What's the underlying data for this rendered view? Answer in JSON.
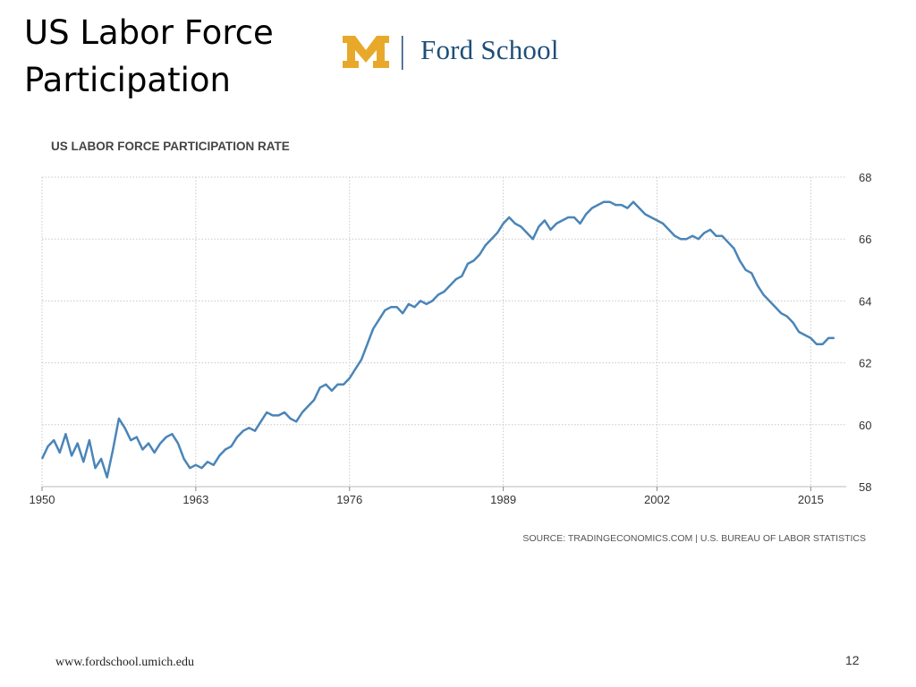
{
  "slide": {
    "title_line1": "US Labor Force",
    "title_line2": "Participation",
    "logo_text": "Ford School",
    "footer_url": "www.fordschool.umich.edu",
    "page_number": "12"
  },
  "colors": {
    "line": "#4a85b8",
    "logo_maize": "#e8a92b",
    "logo_blue": "#1f4e79",
    "grid": "#c8c8c8"
  },
  "chart_data": {
    "type": "line",
    "title": "US LABOR FORCE PARTICIPATION RATE",
    "source": "SOURCE: TRADINGECONOMICS.COM | U.S. BUREAU OF LABOR STATISTICS",
    "xlabel": "",
    "ylabel": "",
    "xlim": [
      1950,
      2018
    ],
    "ylim": [
      58,
      68
    ],
    "x_ticks": [
      1950,
      1963,
      1976,
      1989,
      2002,
      2015
    ],
    "y_ticks": [
      58,
      60,
      62,
      64,
      66,
      68
    ],
    "y_axis_side": "right",
    "grid": true,
    "series": [
      {
        "x": [
          1950,
          1950.5,
          1951,
          1951.5,
          1952,
          1952.5,
          1953,
          1953.5,
          1954,
          1954.5,
          1955,
          1955.5,
          1956,
          1956.5,
          1957,
          1957.5,
          1958,
          1958.5,
          1959,
          1959.5,
          1960,
          1960.5,
          1961,
          1961.5,
          1962,
          1962.5,
          1963,
          1963.5,
          1964,
          1964.5,
          1965,
          1965.5,
          1966,
          1966.5,
          1967,
          1967.5,
          1968,
          1968.5,
          1969,
          1969.5,
          1970,
          1970.5,
          1971,
          1971.5,
          1972,
          1972.5,
          1973,
          1973.5,
          1974,
          1974.5,
          1975,
          1975.5,
          1976,
          1976.5,
          1977,
          1977.5,
          1978,
          1978.5,
          1979,
          1979.5,
          1980,
          1980.5,
          1981,
          1981.5,
          1982,
          1982.5,
          1983,
          1983.5,
          1984,
          1984.5,
          1985,
          1985.5,
          1986,
          1986.5,
          1987,
          1987.5,
          1988,
          1988.5,
          1989,
          1989.5,
          1990,
          1990.5,
          1991,
          1991.5,
          1992,
          1992.5,
          1993,
          1993.5,
          1994,
          1994.5,
          1995,
          1995.5,
          1996,
          1996.5,
          1997,
          1997.5,
          1998,
          1998.5,
          1999,
          1999.5,
          2000,
          2000.5,
          2001,
          2001.5,
          2002,
          2002.5,
          2003,
          2003.5,
          2004,
          2004.5,
          2005,
          2005.5,
          2006,
          2006.5,
          2007,
          2007.5,
          2008,
          2008.5,
          2009,
          2009.5,
          2010,
          2010.5,
          2011,
          2011.5,
          2012,
          2012.5,
          2013,
          2013.5,
          2014,
          2014.5,
          2015,
          2015.5,
          2016,
          2016.5,
          2017
        ],
        "y": [
          58.9,
          59.3,
          59.5,
          59.1,
          59.7,
          59.0,
          59.4,
          58.8,
          59.5,
          58.6,
          58.9,
          58.3,
          59.2,
          60.2,
          59.9,
          59.5,
          59.6,
          59.2,
          59.4,
          59.1,
          59.4,
          59.6,
          59.7,
          59.4,
          58.9,
          58.6,
          58.7,
          58.6,
          58.8,
          58.7,
          59.0,
          59.2,
          59.3,
          59.6,
          59.8,
          59.9,
          59.8,
          60.1,
          60.4,
          60.3,
          60.3,
          60.4,
          60.2,
          60.1,
          60.4,
          60.6,
          60.8,
          61.2,
          61.3,
          61.1,
          61.3,
          61.3,
          61.5,
          61.8,
          62.1,
          62.6,
          63.1,
          63.4,
          63.7,
          63.8,
          63.8,
          63.6,
          63.9,
          63.8,
          64.0,
          63.9,
          64.0,
          64.2,
          64.3,
          64.5,
          64.7,
          64.8,
          65.2,
          65.3,
          65.5,
          65.8,
          66.0,
          66.2,
          66.5,
          66.7,
          66.5,
          66.4,
          66.2,
          66.0,
          66.4,
          66.6,
          66.3,
          66.5,
          66.6,
          66.7,
          66.7,
          66.5,
          66.8,
          67.0,
          67.1,
          67.2,
          67.2,
          67.1,
          67.1,
          67.0,
          67.2,
          67.0,
          66.8,
          66.7,
          66.6,
          66.5,
          66.3,
          66.1,
          66.0,
          66.0,
          66.1,
          66.0,
          66.2,
          66.3,
          66.1,
          66.1,
          65.9,
          65.7,
          65.3,
          65.0,
          64.9,
          64.5,
          64.2,
          64.0,
          63.8,
          63.6,
          63.5,
          63.3,
          63.0,
          62.9,
          62.8,
          62.6,
          62.6,
          62.8,
          62.8
        ]
      }
    ]
  }
}
